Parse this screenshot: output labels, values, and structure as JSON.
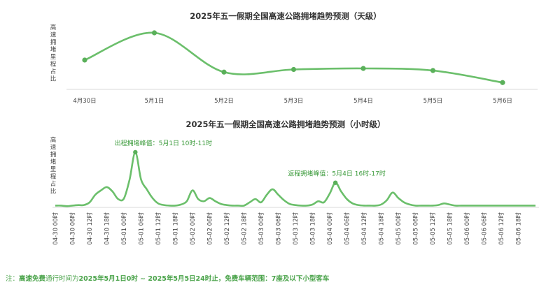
{
  "chart_data": [
    {
      "type": "line",
      "title": "2025年五一假期全国高速公路拥堵趋势预测（天级）",
      "ylabel": "高速拥堵里程占比",
      "categories": [
        "4月30日",
        "5月1日",
        "5月2日",
        "5月3日",
        "5月4日",
        "5月5日",
        "5月6日"
      ],
      "series": [
        {
          "values": [
            0.48,
            1.0,
            0.25,
            0.3,
            0.32,
            0.28,
            0.05
          ]
        }
      ],
      "ylim": [
        0,
        1.05
      ],
      "grid": false,
      "color": "#6bbf6b"
    },
    {
      "type": "line",
      "title": "2025年五一假期全国高速公路拥堵趋势预测（小时级）",
      "ylabel": "高速拥堵里程占比",
      "categories": [
        "04-30 00时",
        "04-30 06时",
        "04-30 12时",
        "04-30 18时",
        "05-01 00时",
        "05-01 06时",
        "05-01 12时",
        "05-01 18时",
        "05-02 00时",
        "05-02 06时",
        "05-02 12时",
        "05-02 18时",
        "05-03 00时",
        "05-03 06时",
        "05-03 12时",
        "05-03 18时",
        "05-04 00时",
        "05-04 06时",
        "05-04 12时",
        "05-04 18时",
        "05-05 00时",
        "05-05 06时",
        "05-05 12时",
        "05-05 18时",
        "05-06 00时",
        "05-06 06时",
        "05-06 12时",
        "05-06 18时"
      ],
      "x": [
        0,
        2,
        4,
        6,
        8,
        10,
        12,
        14,
        16,
        18,
        20,
        22,
        24,
        26,
        28,
        30,
        32,
        34,
        36,
        38,
        40,
        42,
        44,
        46,
        48,
        50,
        52,
        54,
        56,
        58,
        60,
        62,
        64,
        66,
        68,
        70,
        72,
        74,
        76,
        78,
        80,
        82,
        84,
        86,
        88,
        90,
        92,
        94,
        96,
        98,
        100,
        102,
        104,
        106,
        108,
        110,
        112,
        114,
        116,
        118,
        120,
        122,
        124,
        126,
        128,
        130,
        132,
        134,
        136,
        138,
        140,
        142,
        144,
        146,
        148,
        150,
        152,
        154,
        156,
        158,
        160,
        162,
        164,
        166,
        168
      ],
      "series": [
        {
          "values": [
            0.02,
            0.02,
            0.01,
            0.02,
            0.03,
            0.03,
            0.08,
            0.22,
            0.3,
            0.36,
            0.28,
            0.14,
            0.15,
            0.5,
            1.0,
            0.5,
            0.32,
            0.16,
            0.06,
            0.03,
            0.02,
            0.02,
            0.04,
            0.1,
            0.3,
            0.14,
            0.1,
            0.16,
            0.1,
            0.05,
            0.03,
            0.02,
            0.02,
            0.02,
            0.08,
            0.14,
            0.08,
            0.22,
            0.32,
            0.22,
            0.12,
            0.05,
            0.03,
            0.02,
            0.02,
            0.04,
            0.1,
            0.08,
            0.24,
            0.44,
            0.28,
            0.14,
            0.06,
            0.03,
            0.02,
            0.02,
            0.02,
            0.04,
            0.12,
            0.26,
            0.16,
            0.08,
            0.04,
            0.02,
            0.02,
            0.02,
            0.02,
            0.03,
            0.06,
            0.04,
            0.02,
            0.02,
            0.02,
            0.02,
            0.02,
            0.02,
            0.02,
            0.02,
            0.02,
            0.02,
            0.02,
            0.02,
            0.02,
            0.02,
            0.02
          ]
        }
      ],
      "ylim": [
        0,
        1.05
      ],
      "grid": false,
      "color": "#6bbf6b",
      "annotations": [
        {
          "text": "出程拥堵峰值：5月1日 10时-11时",
          "x": 28,
          "y": 1.0
        },
        {
          "text": "返程拥堵峰值：5月4日 16时-17时",
          "x": 98,
          "y": 0.44
        }
      ]
    }
  ],
  "footnote": {
    "prefix": "注：",
    "part1": "高速免费",
    "part2": "通行时间为",
    "part3": "2025年5月1日0时 ~ 2025年5月5日24时止，免费车辆范围：7座及以下小型客车"
  }
}
